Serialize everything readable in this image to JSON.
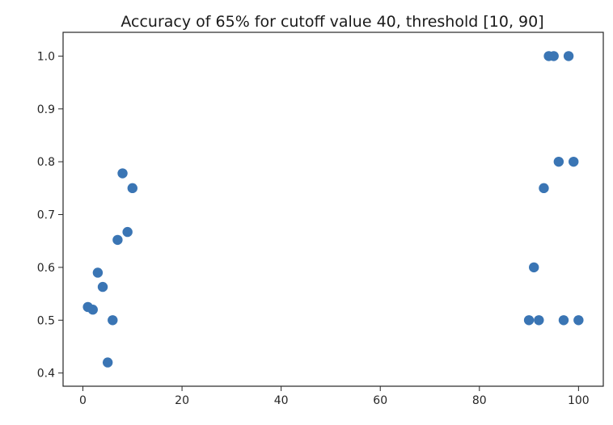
{
  "chart_data": {
    "type": "scatter",
    "title": "Accuracy of 65% for cutoff value 40, threshold [10, 90]",
    "xlabel": "",
    "ylabel": "",
    "xlim": [
      -4,
      105
    ],
    "ylim": [
      0.375,
      1.045
    ],
    "xticks": [
      0,
      20,
      40,
      60,
      80,
      100
    ],
    "yticks": [
      0.4,
      0.5,
      0.6,
      0.7,
      0.8,
      0.9,
      1.0
    ],
    "xtick_labels": [
      "0",
      "20",
      "40",
      "60",
      "80",
      "100"
    ],
    "ytick_labels": [
      "0.4",
      "0.5",
      "0.6",
      "0.7",
      "0.8",
      "0.9",
      "1.0"
    ],
    "grid": false,
    "legend": null,
    "marker_color": "#3a75b4",
    "points": [
      {
        "x": 1,
        "y": 0.525
      },
      {
        "x": 2,
        "y": 0.52
      },
      {
        "x": 3,
        "y": 0.59
      },
      {
        "x": 4,
        "y": 0.563
      },
      {
        "x": 5,
        "y": 0.42
      },
      {
        "x": 6,
        "y": 0.5
      },
      {
        "x": 7,
        "y": 0.652
      },
      {
        "x": 8,
        "y": 0.778
      },
      {
        "x": 9,
        "y": 0.667
      },
      {
        "x": 10,
        "y": 0.75
      },
      {
        "x": 90,
        "y": 0.5
      },
      {
        "x": 91,
        "y": 0.6
      },
      {
        "x": 92,
        "y": 0.5
      },
      {
        "x": 93,
        "y": 0.75
      },
      {
        "x": 94,
        "y": 1.0
      },
      {
        "x": 95,
        "y": 1.0
      },
      {
        "x": 96,
        "y": 0.8
      },
      {
        "x": 97,
        "y": 0.5
      },
      {
        "x": 98,
        "y": 1.0
      },
      {
        "x": 99,
        "y": 0.8
      },
      {
        "x": 100,
        "y": 0.5
      }
    ]
  }
}
